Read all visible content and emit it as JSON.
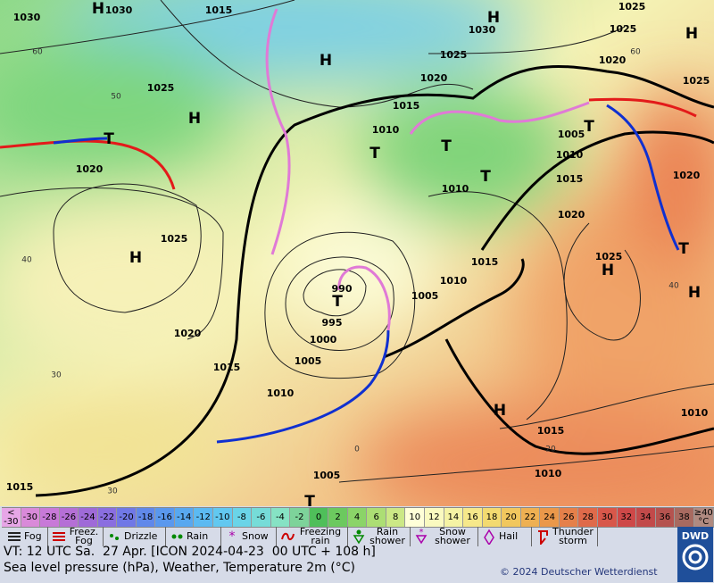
{
  "map": {
    "labels": [
      "1030",
      "H",
      "1030",
      "1015",
      "H",
      "1030",
      "1025",
      "H",
      "1025",
      "1025",
      "H",
      "1020",
      "1025",
      "1025",
      "1020",
      "H",
      "1015",
      "1010",
      "T",
      "T",
      "1005",
      "T",
      "T",
      "1010",
      "1020",
      "T",
      "1015",
      "1020",
      "1010",
      "1025",
      "H",
      "1020",
      "1025",
      "H",
      "T",
      "1015",
      "1010",
      "990",
      "T",
      "1005",
      "H",
      "995",
      "1020",
      "1000",
      "1005",
      "1015",
      "1010",
      "H",
      "1010",
      "1015",
      "1010",
      "1005",
      "1015",
      "T",
      "60",
      "50",
      "40",
      "30",
      "30",
      "20",
      "60",
      "40",
      "0"
    ]
  },
  "legend": {
    "scale_labels": [
      "< -30",
      "-30",
      "-28",
      "-26",
      "-24",
      "-22",
      "-20",
      "-18",
      "-16",
      "-14",
      "-12",
      "-10",
      "-8",
      "-6",
      "-4",
      "-2",
      "0",
      "2",
      "4",
      "6",
      "8",
      "10",
      "12",
      "14",
      "16",
      "18",
      "20",
      "22",
      "24",
      "26",
      "28",
      "30",
      "32",
      "34",
      "36",
      "38",
      "≥40 °C"
    ],
    "scale_colors": [
      "#e7a6e7",
      "#d98ad9",
      "#c879d8",
      "#b56fd6",
      "#9f6ad8",
      "#8a6ee0",
      "#7078e6",
      "#6088ea",
      "#5a98ee",
      "#58a8f0",
      "#5cbaf2",
      "#62c8f0",
      "#6ad4e8",
      "#76dcd8",
      "#86e2c4",
      "#7dd39a",
      "#4fbf5a",
      "#6cc95f",
      "#8bd468",
      "#acde74",
      "#cce886",
      "#ffffd8",
      "#fafac0",
      "#f5f3a4",
      "#f6e88a",
      "#f3da70",
      "#f1c75e",
      "#eeb052",
      "#ea984a",
      "#e5804a",
      "#df6a4a",
      "#d8574a",
      "#ce4848",
      "#c24a4a",
      "#b5534f",
      "#a86a60",
      "#b08a80"
    ],
    "weather": [
      "Fog",
      "Freez. Fog",
      "Drizzle",
      "Rain",
      "Snow",
      "Freezing rain",
      "Rain shower",
      "Snow shower",
      "Hail",
      "Thunder storm"
    ]
  },
  "footer": {
    "valid_time": "VT: 12 UTC Sa.  27 Apr. [ICON 2024-04-23  00 UTC + 108 h]",
    "description": "Sea level pressure (hPa), Weather, Temperature 2m (°C)",
    "copyright": "© 2024 Deutscher Wetterdienst",
    "logo": "DWD"
  }
}
